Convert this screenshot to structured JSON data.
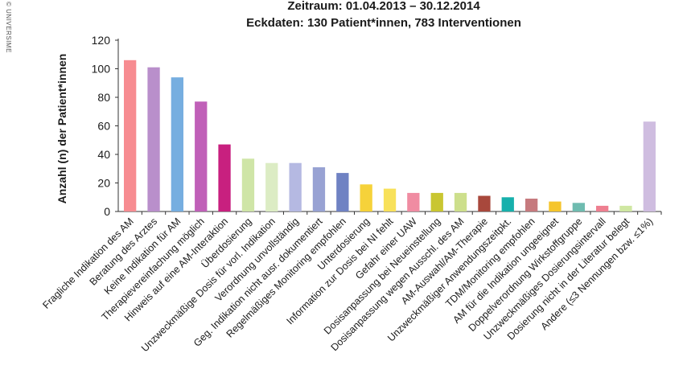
{
  "side_text": "© UNIVERSIME",
  "chart_data": {
    "type": "bar",
    "title": "Zeitraum: 01.04.2013 – 30.12.2014",
    "subtitle": "Eckdaten: 130 Patient*innen, 783 Interventionen",
    "xlabel": "",
    "ylabel": "Anzahl (n) der Patient*innen",
    "ylim": [
      0,
      120
    ],
    "yticks": [
      0,
      20,
      40,
      60,
      80,
      100,
      120
    ],
    "grid": false,
    "categories": [
      "Fragliche Indikation des AM",
      "Beratung des Arztes",
      "Keine Indikation für AM",
      "Therapievereinfachung möglich",
      "Hinweis auf eine AM-Interaktion",
      "Überdosierung",
      "Unzweckmäßige Dosis für vorl. Indikation",
      "Verordnung unvollständig",
      "Geg. Indikation nicht ausr. dokumentiert",
      "Regelmäßiges Monitoring empfohlen",
      "Unterdosierung",
      "Information zur Dosis bei NI fehlt",
      "Gefahr einer UAW",
      "Dosisanpassung bei Neueinstellung",
      "Dosisanpassung wegen Ausschl. des AM",
      "AM-Auswahl/AM-Therapie",
      "Unzweckmäßiger Anwendungszeitpkt.",
      "TDM/Monitoring empfohlen",
      "AM für die Indikation ungeeignet",
      "Doppelverordnung Wirkstoffgruppe",
      "Unzweckmäßiges Dosierungsintervall",
      "Dosierung nicht in der Literatur belegt",
      "Andere (≤3 Nennungen bzw. ≤1%)"
    ],
    "values": [
      106,
      101,
      94,
      77,
      47,
      37,
      34,
      34,
      31,
      27,
      19,
      16,
      13,
      13,
      13,
      11,
      10,
      9,
      7,
      6,
      4,
      4,
      63
    ],
    "colors": [
      "#f78c91",
      "#b98fcb",
      "#76aee0",
      "#c060b8",
      "#c8207f",
      "#cfe5a7",
      "#dcecc4",
      "#b5b9e2",
      "#98a2d3",
      "#6f82c3",
      "#f6d23a",
      "#f8e15a",
      "#f08ca2",
      "#c9c631",
      "#cddf8c",
      "#a8483c",
      "#17b0ac",
      "#c67a7e",
      "#f5c52c",
      "#6fbcb0",
      "#ee7f90",
      "#cfe7a2",
      "#cfbde0"
    ]
  }
}
